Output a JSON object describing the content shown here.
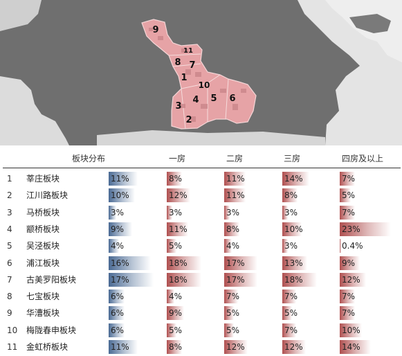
{
  "map": {
    "labels": [
      "9",
      "11",
      "8",
      "7",
      "1",
      "10",
      "3",
      "4",
      "5",
      "6",
      "2"
    ]
  },
  "table": {
    "headers": [
      "板块分布",
      "一房",
      "二房",
      "三房",
      "四房及以上"
    ],
    "rows": [
      {
        "idx": "1",
        "name": "莘庄板块",
        "values": [
          "11%",
          "8%",
          "11%",
          "14%",
          "7%"
        ]
      },
      {
        "idx": "2",
        "name": "江川路板块",
        "values": [
          "10%",
          "12%",
          "11%",
          "8%",
          "5%"
        ]
      },
      {
        "idx": "3",
        "name": "马桥板块",
        "values": [
          "3%",
          "3%",
          "3%",
          "3%",
          "7%"
        ]
      },
      {
        "idx": "4",
        "name": "颛桥板块",
        "values": [
          "9%",
          "11%",
          "8%",
          "10%",
          "23%"
        ]
      },
      {
        "idx": "5",
        "name": "吴泾板块",
        "values": [
          "4%",
          "5%",
          "4%",
          "3%",
          "0.4%"
        ]
      },
      {
        "idx": "6",
        "name": "浦江板块",
        "values": [
          "16%",
          "18%",
          "17%",
          "13%",
          "9%"
        ]
      },
      {
        "idx": "7",
        "name": "古美罗阳板块",
        "values": [
          "17%",
          "18%",
          "17%",
          "18%",
          "12%"
        ]
      },
      {
        "idx": "8",
        "name": "七宝板块",
        "values": [
          "6%",
          "4%",
          "7%",
          "7%",
          "7%"
        ]
      },
      {
        "idx": "9",
        "name": "华漕板块",
        "values": [
          "6%",
          "9%",
          "5%",
          "5%",
          "7%"
        ]
      },
      {
        "idx": "10",
        "name": "梅陇春申板块",
        "values": [
          "6%",
          "5%",
          "5%",
          "7%",
          "10%"
        ]
      },
      {
        "idx": "11",
        "name": "金虹桥板块",
        "values": [
          "11%",
          "8%",
          "12%",
          "12%",
          "14%"
        ]
      }
    ],
    "levels": [
      [
        0.11,
        0.08,
        0.11,
        0.14,
        0.07
      ],
      [
        0.1,
        0.12,
        0.11,
        0.08,
        0.05
      ],
      [
        0.03,
        0.03,
        0.03,
        0.03,
        0.07
      ],
      [
        0.09,
        0.11,
        0.08,
        0.1,
        0.23
      ],
      [
        0.04,
        0.05,
        0.04,
        0.03,
        0.004
      ],
      [
        0.16,
        0.18,
        0.17,
        0.13,
        0.09
      ],
      [
        0.17,
        0.18,
        0.17,
        0.18,
        0.12
      ],
      [
        0.06,
        0.04,
        0.07,
        0.07,
        0.07
      ],
      [
        0.06,
        0.09,
        0.05,
        0.05,
        0.07
      ],
      [
        0.06,
        0.05,
        0.05,
        0.07,
        0.1
      ],
      [
        0.11,
        0.08,
        0.12,
        0.12,
        0.14
      ]
    ],
    "colors": {
      "distribution_bar": "#4a6a94",
      "room_bar": "#b05050"
    }
  }
}
